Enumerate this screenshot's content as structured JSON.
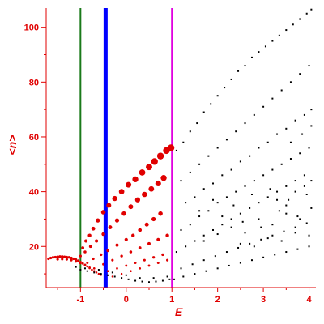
{
  "chart_data": {
    "type": "scatter",
    "title": "",
    "xlabel": "E",
    "ylabel": "<n>",
    "xlim": [
      -1.75,
      4.15
    ],
    "ylim": [
      5,
      107
    ],
    "x_ticks": [
      -1,
      0,
      1,
      2,
      3,
      4
    ],
    "x_tick_labels": [
      "-1",
      "0",
      "1",
      "2",
      "3",
      "4"
    ],
    "y_ticks": [
      20,
      40,
      60,
      80,
      100
    ],
    "y_tick_labels": [
      "20",
      "40",
      "60",
      "80",
      "100"
    ],
    "grid": false,
    "colors": {
      "axis": "#e00000",
      "highlight_points": "#e00000",
      "black_points": "#000000",
      "vline_green": "#1a7a1a",
      "vline_blue": "#0000ff",
      "vline_magenta": "#e000e0"
    },
    "vertical_lines": [
      {
        "x": -1.0,
        "color": "#1a7a1a"
      },
      {
        "x": -0.45,
        "color": "#0000ff"
      },
      {
        "x": 1.0,
        "color": "#e000e0"
      }
    ],
    "series": [
      {
        "color": "#e00000",
        "points": [
          [
            -1.7,
            15.5
          ],
          [
            -1.65,
            15.8
          ],
          [
            -1.6,
            16
          ],
          [
            -1.55,
            16.1
          ],
          [
            -1.5,
            16.2
          ],
          [
            -1.45,
            16.3
          ],
          [
            -1.4,
            16.3
          ],
          [
            -1.35,
            16.2
          ],
          [
            -1.3,
            16.1
          ],
          [
            -1.25,
            16
          ],
          [
            -1.2,
            15.8
          ],
          [
            -1.15,
            15.5
          ],
          [
            -1.1,
            15.2
          ],
          [
            -1.05,
            14.8
          ],
          [
            -1.0,
            14.3
          ],
          [
            -0.95,
            13.8
          ],
          [
            -0.9,
            13.3
          ],
          [
            -0.85,
            12.7
          ],
          [
            -0.8,
            12.1
          ],
          [
            -0.75,
            11.5
          ],
          [
            -0.7,
            11.0
          ],
          [
            -0.65,
            10.5
          ],
          [
            -0.6,
            10.0
          ],
          [
            -0.55,
            9.6
          ],
          [
            -1.5,
            15.3
          ],
          [
            -1.4,
            15.4
          ],
          [
            -1.3,
            15.3
          ],
          [
            -1.2,
            15.0
          ],
          [
            -1.1,
            14.5
          ],
          [
            -1.0,
            13.9
          ],
          [
            -0.9,
            13.1
          ],
          [
            -0.8,
            12.3
          ],
          [
            -1.0,
            16.5
          ],
          [
            -0.95,
            19.5
          ],
          [
            -0.88,
            22
          ],
          [
            -0.8,
            24
          ],
          [
            -0.72,
            26.5
          ],
          [
            -0.62,
            29.5
          ],
          [
            -0.5,
            32.5
          ],
          [
            -0.38,
            35
          ],
          [
            -0.25,
            37.5
          ],
          [
            -0.1,
            40
          ],
          [
            0.05,
            42.5
          ],
          [
            0.2,
            44.5
          ],
          [
            0.35,
            47
          ],
          [
            0.5,
            49
          ],
          [
            0.62,
            51
          ],
          [
            0.75,
            53
          ],
          [
            0.88,
            55
          ],
          [
            0.98,
            56
          ],
          [
            -0.9,
            18
          ],
          [
            -0.78,
            20
          ],
          [
            -0.65,
            22
          ],
          [
            -0.5,
            24.5
          ],
          [
            -0.35,
            27
          ],
          [
            -0.2,
            29.5
          ],
          [
            -0.05,
            32
          ],
          [
            0.1,
            34.5
          ],
          [
            0.25,
            37
          ],
          [
            0.4,
            39
          ],
          [
            0.55,
            41
          ],
          [
            0.7,
            43
          ],
          [
            0.82,
            45
          ],
          [
            -0.85,
            14
          ],
          [
            -0.72,
            15.5
          ],
          [
            -0.55,
            17
          ],
          [
            -0.4,
            18.5
          ],
          [
            -0.2,
            20.5
          ],
          [
            0.0,
            22.5
          ],
          [
            0.15,
            24
          ],
          [
            0.3,
            26
          ],
          [
            0.45,
            28
          ],
          [
            0.6,
            30
          ],
          [
            0.75,
            32
          ],
          [
            -0.7,
            12
          ],
          [
            -0.5,
            13.5
          ],
          [
            -0.3,
            15
          ],
          [
            -0.1,
            16.5
          ],
          [
            0.1,
            18
          ],
          [
            0.3,
            19.5
          ],
          [
            0.5,
            21
          ],
          [
            0.7,
            22.5
          ],
          [
            0.9,
            24
          ],
          [
            -0.6,
            10
          ],
          [
            -0.4,
            11
          ],
          [
            -0.2,
            12
          ],
          [
            0.0,
            13
          ],
          [
            0.2,
            14
          ],
          [
            0.4,
            15
          ],
          [
            0.6,
            16
          ],
          [
            0.8,
            17
          ],
          [
            -0.3,
            9
          ],
          [
            -0.1,
            10
          ],
          [
            0.1,
            11
          ],
          [
            0.3,
            12
          ],
          [
            0.5,
            13
          ],
          [
            0.7,
            14
          ],
          [
            0.9,
            15
          ]
        ]
      },
      {
        "color": "#000000",
        "points": [
          [
            1.1,
            55
          ],
          [
            1.25,
            58
          ],
          [
            1.4,
            62
          ],
          [
            1.55,
            65
          ],
          [
            1.7,
            69
          ],
          [
            1.85,
            72
          ],
          [
            2.0,
            75
          ],
          [
            2.15,
            78
          ],
          [
            2.3,
            81
          ],
          [
            2.45,
            84
          ],
          [
            2.6,
            86
          ],
          [
            2.75,
            89
          ],
          [
            2.9,
            91
          ],
          [
            3.05,
            93
          ],
          [
            3.2,
            95
          ],
          [
            3.35,
            97
          ],
          [
            3.5,
            99
          ],
          [
            3.65,
            101
          ],
          [
            3.8,
            103
          ],
          [
            3.95,
            105
          ],
          [
            4.05,
            106.5
          ],
          [
            1.2,
            44
          ],
          [
            1.4,
            47
          ],
          [
            1.6,
            50
          ],
          [
            1.8,
            53
          ],
          [
            2.0,
            56
          ],
          [
            2.2,
            59
          ],
          [
            2.4,
            62
          ],
          [
            2.6,
            65
          ],
          [
            2.8,
            68
          ],
          [
            3.0,
            71
          ],
          [
            3.2,
            74
          ],
          [
            3.4,
            77
          ],
          [
            3.6,
            80
          ],
          [
            3.8,
            83
          ],
          [
            4.0,
            86
          ],
          [
            1.3,
            36
          ],
          [
            1.5,
            38
          ],
          [
            1.7,
            41
          ],
          [
            1.9,
            43
          ],
          [
            2.1,
            46
          ],
          [
            2.3,
            48
          ],
          [
            2.5,
            51
          ],
          [
            2.7,
            53
          ],
          [
            2.9,
            56
          ],
          [
            3.1,
            58
          ],
          [
            3.3,
            61
          ],
          [
            3.5,
            63
          ],
          [
            3.7,
            66
          ],
          [
            3.9,
            68
          ],
          [
            4.05,
            70
          ],
          [
            1.2,
            26
          ],
          [
            1.4,
            28
          ],
          [
            1.6,
            31
          ],
          [
            1.8,
            33
          ],
          [
            2.0,
            36
          ],
          [
            2.2,
            38
          ],
          [
            2.4,
            40
          ],
          [
            2.6,
            42
          ],
          [
            2.8,
            44
          ],
          [
            3.0,
            46
          ],
          [
            3.2,
            48
          ],
          [
            3.4,
            50
          ],
          [
            3.6,
            52
          ],
          [
            3.8,
            54
          ],
          [
            4.0,
            56
          ],
          [
            1.1,
            18
          ],
          [
            1.3,
            20
          ],
          [
            1.5,
            22
          ],
          [
            1.7,
            24
          ],
          [
            1.9,
            26
          ],
          [
            2.1,
            28
          ],
          [
            2.3,
            30
          ],
          [
            2.5,
            32
          ],
          [
            2.7,
            34
          ],
          [
            2.9,
            36
          ],
          [
            3.1,
            38
          ],
          [
            3.3,
            40
          ],
          [
            3.5,
            42
          ],
          [
            3.7,
            44
          ],
          [
            3.9,
            46
          ],
          [
            1.2,
            12
          ],
          [
            1.45,
            13.5
          ],
          [
            1.7,
            15
          ],
          [
            1.95,
            16.5
          ],
          [
            2.2,
            18
          ],
          [
            2.45,
            19.5
          ],
          [
            2.7,
            21
          ],
          [
            2.95,
            22.5
          ],
          [
            3.2,
            24
          ],
          [
            3.45,
            25.5
          ],
          [
            3.7,
            27
          ],
          [
            3.95,
            28.5
          ],
          [
            1.05,
            8
          ],
          [
            1.25,
            9
          ],
          [
            1.5,
            10
          ],
          [
            1.75,
            11
          ],
          [
            2.0,
            12
          ],
          [
            2.25,
            13
          ],
          [
            2.5,
            14
          ],
          [
            2.75,
            15
          ],
          [
            3.0,
            16
          ],
          [
            3.25,
            17
          ],
          [
            3.5,
            18
          ],
          [
            3.75,
            19
          ],
          [
            4.0,
            20
          ],
          [
            1.6,
            33
          ],
          [
            1.9,
            37
          ],
          [
            2.1,
            31
          ],
          [
            2.35,
            35
          ],
          [
            2.55,
            29
          ],
          [
            2.75,
            39
          ],
          [
            2.95,
            27
          ],
          [
            3.15,
            41
          ],
          [
            3.35,
            33
          ],
          [
            3.55,
            37
          ],
          [
            3.75,
            31
          ],
          [
            3.95,
            39
          ],
          [
            1.7,
            22
          ],
          [
            2.0,
            24.5
          ],
          [
            2.3,
            27
          ],
          [
            2.6,
            25
          ],
          [
            2.9,
            30
          ],
          [
            3.2,
            28
          ],
          [
            3.5,
            32
          ],
          [
            3.8,
            30
          ],
          [
            4.05,
            34
          ],
          [
            3.3,
            37
          ],
          [
            3.5,
            35
          ],
          [
            3.7,
            40
          ],
          [
            3.9,
            42
          ],
          [
            4.05,
            44
          ],
          [
            3.6,
            58
          ],
          [
            3.85,
            61
          ],
          [
            4.05,
            64
          ],
          [
            2.5,
            21
          ],
          [
            2.8,
            20
          ],
          [
            3.1,
            23
          ],
          [
            3.4,
            22
          ],
          [
            3.7,
            25
          ],
          [
            4.0,
            24
          ],
          [
            -1.0,
            11.5
          ],
          [
            -0.85,
            11
          ],
          [
            -0.7,
            10.5
          ],
          [
            -0.55,
            10
          ],
          [
            -0.4,
            9.5
          ],
          [
            -0.25,
            9
          ],
          [
            -0.1,
            8.5
          ],
          [
            0.05,
            8
          ],
          [
            0.2,
            7.5
          ],
          [
            0.35,
            7.2
          ],
          [
            0.5,
            7
          ],
          [
            0.65,
            7.2
          ],
          [
            0.8,
            7.5
          ],
          [
            0.95,
            8
          ],
          [
            -1.1,
            12.5
          ],
          [
            -0.9,
            12
          ],
          [
            -0.6,
            11.5
          ],
          [
            -0.3,
            10.5
          ],
          [
            0.0,
            9.5
          ],
          [
            0.3,
            8.5
          ],
          [
            0.6,
            8.5
          ],
          [
            0.9,
            9
          ]
        ]
      }
    ]
  }
}
